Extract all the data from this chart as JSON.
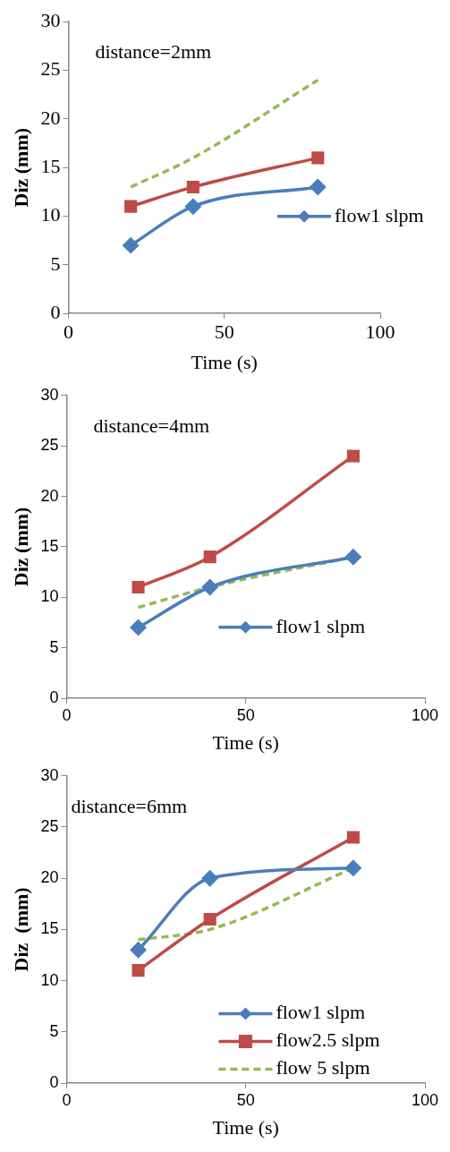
{
  "chart_data": [
    {
      "type": "line",
      "xlabel": "Time (s)",
      "ylabel": "Diz (mm)",
      "xlim": [
        0,
        100
      ],
      "xticks": [
        0,
        50,
        100
      ],
      "ylim": [
        0,
        30
      ],
      "yticks": [
        0,
        5,
        10,
        15,
        20,
        25,
        30
      ],
      "grid": false,
      "legend": "right",
      "annotations": [
        "distance=2mm"
      ],
      "series": [
        {
          "name": "flow1 slpm",
          "color": "#4a7ebb",
          "x": [
            20,
            40,
            80
          ],
          "values": [
            7,
            11,
            13
          ],
          "marker": "diamond",
          "line_style": "solid"
        },
        {
          "color": "#be4b48",
          "x": [
            20,
            40,
            80
          ],
          "values": [
            11,
            13,
            16
          ],
          "marker": "square",
          "line_style": "solid"
        },
        {
          "color": "#98b954",
          "x": [
            20,
            40,
            80
          ],
          "values": [
            13,
            16,
            24
          ],
          "marker": "none",
          "line_style": "dashed"
        }
      ]
    },
    {
      "type": "line",
      "xlabel": "Time (s)",
      "ylabel": "Diz (mm)",
      "xlim": [
        0,
        100
      ],
      "xticks": [
        0,
        50,
        100
      ],
      "ylim": [
        0,
        30
      ],
      "yticks": [
        0,
        5,
        10,
        15,
        20,
        25,
        30
      ],
      "grid": false,
      "legend": "right",
      "annotations": [
        "distance=4mm"
      ],
      "series": [
        {
          "name": "flow1 slpm",
          "color": "#4a7ebb",
          "x": [
            20,
            40,
            80
          ],
          "values": [
            7,
            11,
            14
          ],
          "marker": "diamond",
          "line_style": "solid"
        },
        {
          "color": "#be4b48",
          "x": [
            20,
            40,
            80
          ],
          "values": [
            11,
            14,
            24
          ],
          "marker": "square",
          "line_style": "solid"
        },
        {
          "color": "#98b954",
          "x": [
            20,
            40,
            80
          ],
          "values": [
            9,
            11,
            14
          ],
          "marker": "none",
          "line_style": "dashed"
        }
      ]
    },
    {
      "type": "line",
      "xlabel": "Time (s)",
      "ylabel": "Diz  (mm)",
      "xlim": [
        0,
        100
      ],
      "xticks": [
        0,
        50,
        100
      ],
      "ylim": [
        0,
        30
      ],
      "yticks": [
        0,
        5,
        10,
        15,
        20,
        25,
        30
      ],
      "grid": false,
      "legend": "bottom right",
      "annotations": [
        "distance=6mm"
      ],
      "series": [
        {
          "name": "flow1 slpm",
          "color": "#4a7ebb",
          "x": [
            20,
            40,
            80
          ],
          "values": [
            13,
            20,
            21
          ],
          "marker": "diamond",
          "line_style": "solid"
        },
        {
          "name": "flow2.5 slpm",
          "color": "#be4b48",
          "x": [
            20,
            40,
            80
          ],
          "values": [
            11,
            16,
            24
          ],
          "marker": "square",
          "line_style": "solid"
        },
        {
          "name": "flow 5 slpm",
          "color": "#98b954",
          "x": [
            20,
            40,
            80
          ],
          "values": [
            14,
            15,
            21
          ],
          "marker": "none",
          "line_style": "dashed"
        }
      ]
    }
  ]
}
